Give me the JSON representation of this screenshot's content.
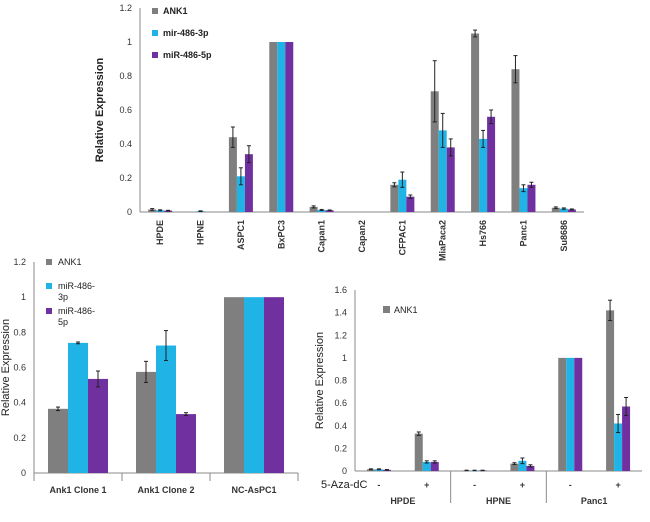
{
  "colors": {
    "ANK1": "#7f7f7f",
    "mir3p": "#1fb3e6",
    "mir5p": "#7030a0"
  },
  "chart_data": [
    {
      "type": "bar",
      "ylabel": "Relative Expression",
      "ylim": [
        0,
        1.2
      ],
      "yticks": [
        "0",
        "0.2",
        "0.4",
        "0.6",
        "0.8",
        "1",
        "1.2"
      ],
      "legend_position": "top-left",
      "categories": [
        "HPDE",
        "HPNE",
        "ASPC1",
        "BxPC3",
        "Capan1",
        "Capan2",
        "CFPAC1",
        "MiaPaca2",
        "Hs766",
        "Panc1",
        "Su8686"
      ],
      "series": [
        {
          "name": "ANK1",
          "values": [
            0.015,
            0.0,
            0.44,
            1.0,
            0.03,
            0.0,
            0.16,
            0.71,
            1.05,
            0.84,
            0.025
          ],
          "errors": [
            0.005,
            0.0,
            0.06,
            0.0,
            0.006,
            0.0,
            0.012,
            0.18,
            0.02,
            0.08,
            0.005
          ]
        },
        {
          "name": "mir-486-3p",
          "values": [
            0.01,
            0.005,
            0.21,
            1.0,
            0.012,
            0.0,
            0.19,
            0.48,
            0.43,
            0.14,
            0.02
          ],
          "errors": [
            0.003,
            0.002,
            0.05,
            0.0,
            0.003,
            0.0,
            0.045,
            0.1,
            0.05,
            0.02,
            0.004
          ]
        },
        {
          "name": "miR-486-5p",
          "values": [
            0.008,
            0.0,
            0.34,
            1.0,
            0.01,
            0.0,
            0.09,
            0.38,
            0.56,
            0.16,
            0.015
          ],
          "errors": [
            0.002,
            0.0,
            0.05,
            0.0,
            0.002,
            0.0,
            0.01,
            0.05,
            0.04,
            0.015,
            0.003
          ]
        }
      ]
    },
    {
      "type": "bar",
      "ylabel": "Relative Expression",
      "ylim": [
        0,
        1.2
      ],
      "yticks": [
        "0",
        "0.2",
        "0.4",
        "0.6",
        "0.8",
        "1",
        "1.2"
      ],
      "legend_position": "top-left",
      "categories": [
        "Ank1 Clone 1",
        "Ank1 Clone 2",
        "NC-AsPC1"
      ],
      "series": [
        {
          "name": "ANK1",
          "values": [
            0.365,
            0.575,
            1.0
          ],
          "errors": [
            0.01,
            0.06,
            0.0
          ]
        },
        {
          "name": "miR-486-3p",
          "values": [
            0.74,
            0.725,
            1.0
          ],
          "errors": [
            0.005,
            0.085,
            0.0
          ]
        },
        {
          "name": "miR-486-5p",
          "values": [
            0.535,
            0.335,
            1.0
          ],
          "errors": [
            0.045,
            0.008,
            0.0
          ]
        }
      ],
      "legend_labels": [
        {
          "lines": [
            "ANK1"
          ]
        },
        {
          "lines": [
            "miR-486-",
            "3p"
          ]
        },
        {
          "lines": [
            "miR-486-",
            "5p"
          ]
        }
      ]
    },
    {
      "type": "bar",
      "ylabel": "Relative Expression",
      "ylim": [
        0,
        1.6
      ],
      "yticks": [
        "0",
        "0.2",
        "0.4",
        "0.6",
        "0.8",
        "1",
        "1.2",
        "1.4",
        "1.6"
      ],
      "legend_position": "top-left",
      "legend": [
        "ANK1"
      ],
      "treatment_label": "5-Aza-dC",
      "groups": [
        "HPDE",
        "HPNE",
        "Panc1"
      ],
      "sublabels": [
        "-",
        "+",
        "-",
        "+",
        "-",
        "+"
      ],
      "series": [
        {
          "values": [
            0.015,
            0.33,
            0.005,
            0.065,
            1.0,
            1.42
          ],
          "errors": [
            0.004,
            0.015,
            0.002,
            0.008,
            0.0,
            0.09
          ]
        },
        {
          "values": [
            0.015,
            0.08,
            0.005,
            0.09,
            1.0,
            0.42
          ],
          "errors": [
            0.004,
            0.01,
            0.002,
            0.025,
            0.0,
            0.08
          ]
        },
        {
          "values": [
            0.01,
            0.08,
            0.005,
            0.045,
            1.0,
            0.57
          ],
          "errors": [
            0.003,
            0.01,
            0.002,
            0.01,
            0.0,
            0.08
          ]
        }
      ]
    }
  ]
}
